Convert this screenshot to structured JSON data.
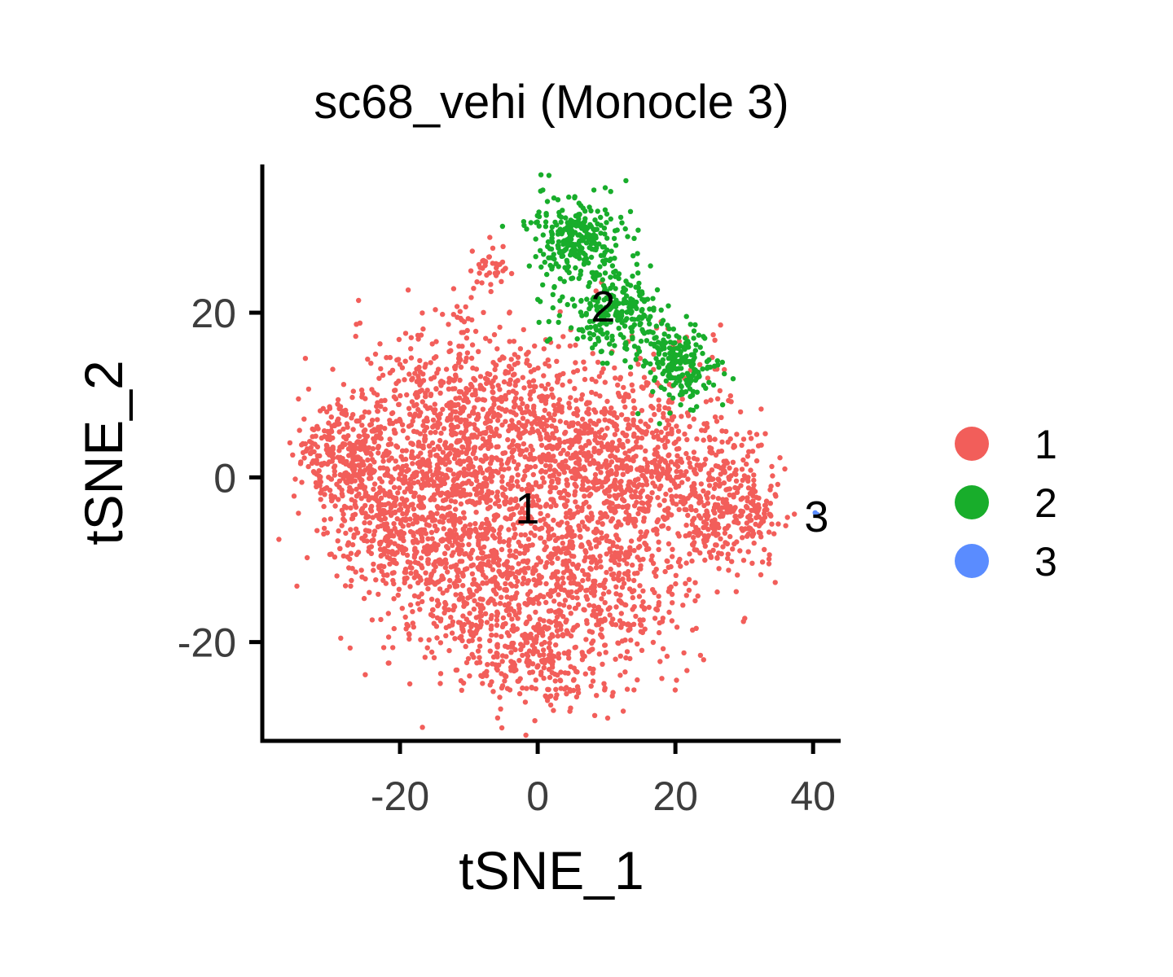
{
  "chart_data": {
    "type": "scatter",
    "title": "sc68_vehi (Monocle 3)",
    "xlabel": "tSNE_1",
    "ylabel": "tSNE_2",
    "xlim": [
      -40,
      44
    ],
    "ylim": [
      -32,
      38
    ],
    "x_ticks": [
      -20,
      0,
      20,
      40
    ],
    "x_tick_labels": [
      "-20",
      "0",
      "20",
      "40"
    ],
    "y_ticks": [
      -20,
      0,
      20
    ],
    "y_tick_labels": [
      "-20",
      "0",
      "20"
    ],
    "grid": false,
    "legend_position": "right",
    "legend": [
      {
        "label": "1",
        "color": "#F25E5A"
      },
      {
        "label": "2",
        "color": "#18AD2B"
      },
      {
        "label": "3",
        "color": "#5A8CFF"
      }
    ],
    "cluster_labels": [
      {
        "text": "1",
        "x": -1.5,
        "y": -3.8
      },
      {
        "text": "2",
        "x": 9.5,
        "y": 20.7
      },
      {
        "text": "3",
        "x": 40.5,
        "y": -4.8
      }
    ],
    "series": [
      {
        "name": "1",
        "color": "#F25E5A",
        "n_points": 4200,
        "blobs": [
          {
            "cx": -12,
            "cy": 6,
            "sx": 6.5,
            "sy": 6.5,
            "w": 0.18
          },
          {
            "cx": -28,
            "cy": 3,
            "sx": 3.5,
            "sy": 3.5,
            "w": 0.07
          },
          {
            "cx": -21,
            "cy": -5,
            "sx": 5,
            "sy": 5,
            "w": 0.1
          },
          {
            "cx": 2,
            "cy": 2,
            "sx": 7,
            "sy": 7,
            "w": 0.15
          },
          {
            "cx": 15,
            "cy": 2,
            "sx": 7,
            "sy": 6,
            "w": 0.14
          },
          {
            "cx": 27,
            "cy": -4,
            "sx": 4,
            "sy": 4,
            "w": 0.07
          },
          {
            "cx": -8,
            "cy": -13,
            "sx": 7,
            "sy": 6,
            "w": 0.14
          },
          {
            "cx": 9,
            "cy": -14,
            "sx": 7,
            "sy": 6,
            "w": 0.12
          },
          {
            "cx": -2,
            "cy": -22,
            "sx": 4,
            "sy": 2.5,
            "w": 0.03
          }
        ],
        "tails": [
          {
            "cx": -7,
            "cy": 25.5,
            "sx": 1.5,
            "sy": 1.2,
            "n": 35
          },
          {
            "cx": 4,
            "cy": -26.5,
            "sx": 1.5,
            "sy": 1,
            "n": 18
          },
          {
            "cx": 32,
            "cy": -4.5,
            "sx": 1.2,
            "sy": 1,
            "n": 20
          }
        ]
      },
      {
        "name": "2",
        "color": "#18AD2B",
        "n_points": 700,
        "blobs": [
          {
            "cx": 5.5,
            "cy": 29,
            "sx": 3.2,
            "sy": 2.6,
            "w": 0.38
          },
          {
            "cx": 11,
            "cy": 20,
            "sx": 3.8,
            "sy": 2.8,
            "w": 0.34
          },
          {
            "cx": 21,
            "cy": 13.5,
            "sx": 2.6,
            "sy": 2.4,
            "w": 0.28
          }
        ],
        "tails": []
      },
      {
        "name": "3",
        "color": "#5A8CFF",
        "n_points": 2,
        "points": [
          [
            40.3,
            -4.3
          ],
          [
            40.6,
            -4.5
          ]
        ]
      }
    ]
  }
}
